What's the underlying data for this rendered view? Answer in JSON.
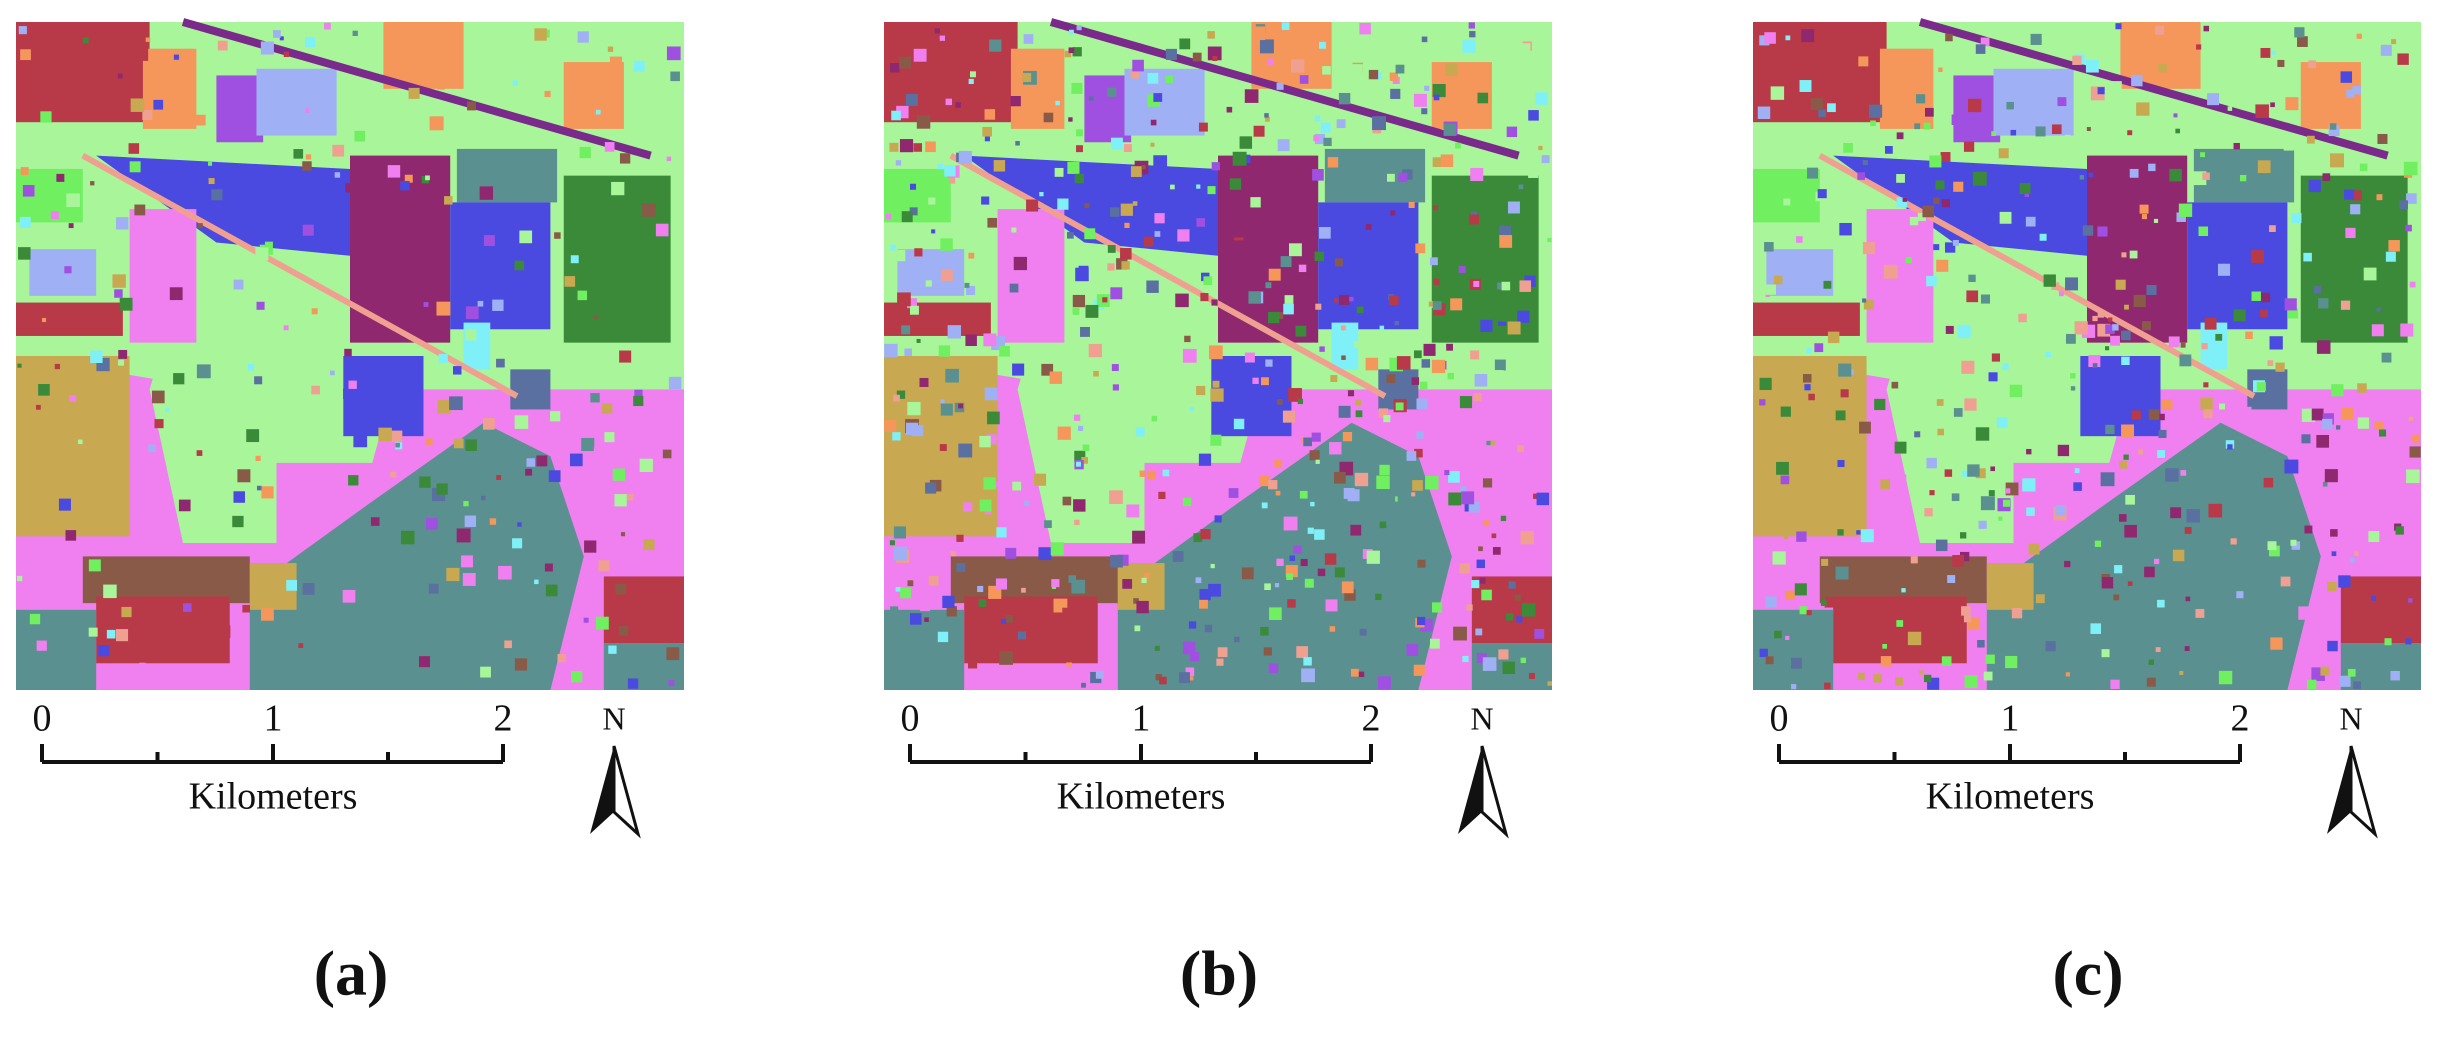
{
  "panels": [
    {
      "label": "(a)",
      "scale_ticks": [
        "0",
        "1",
        "2"
      ],
      "scale_unit": "Kilometers",
      "north": "N"
    },
    {
      "label": "(b)",
      "scale_ticks": [
        "0",
        "1",
        "2"
      ],
      "scale_unit": "Kilometers",
      "north": "N"
    },
    {
      "label": "(c)",
      "scale_ticks": [
        "0",
        "1",
        "2"
      ],
      "scale_unit": "Kilometers",
      "north": "N"
    }
  ]
}
